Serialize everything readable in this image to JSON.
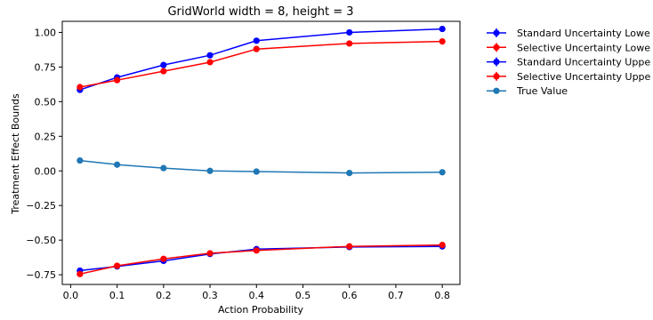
{
  "chart_data": {
    "type": "line",
    "title": "GridWorld width = 8, height = 3",
    "xlabel": "Action Probability",
    "ylabel": "Treatment Effect Bounds",
    "xlim": [
      -0.018,
      0.838
    ],
    "ylim": [
      -0.82,
      1.08
    ],
    "xticks": [
      0.0,
      0.1,
      0.2,
      0.3,
      0.4,
      0.5,
      0.6,
      0.7,
      0.8
    ],
    "xtick_labels": [
      "0.0",
      "0.1",
      "0.2",
      "0.3",
      "0.4",
      "0.5",
      "0.6",
      "0.7",
      "0.8"
    ],
    "yticks": [
      -0.75,
      -0.5,
      -0.25,
      0.0,
      0.25,
      0.5,
      0.75,
      1.0
    ],
    "ytick_labels": [
      "−0.75",
      "−0.50",
      "−0.25",
      "0.00",
      "0.25",
      "0.50",
      "0.75",
      "1.00"
    ],
    "x": [
      0.02,
      0.1,
      0.2,
      0.3,
      0.4,
      0.6,
      0.8
    ],
    "grid": false,
    "legend_position": "outside-top-right",
    "series": [
      {
        "name": "Standard Uncertainty Lower Bound",
        "legend_label": "Standard Uncertainty Lowe",
        "color": "#0000ff",
        "marker": "circle-errorbar",
        "values": [
          -0.72,
          -0.69,
          -0.65,
          -0.6,
          -0.565,
          -0.55,
          -0.545
        ]
      },
      {
        "name": "Selective Uncertainty Lower Bound",
        "legend_label": "Selective Uncertainty Lowe",
        "color": "#ff0000",
        "marker": "circle-errorbar",
        "values": [
          -0.745,
          -0.685,
          -0.635,
          -0.595,
          -0.575,
          -0.545,
          -0.535
        ]
      },
      {
        "name": "Standard Uncertainty Upper Bound",
        "legend_label": "Standard Uncertainty Uppe",
        "color": "#0000ff",
        "marker": "circle-errorbar",
        "values": [
          0.585,
          0.675,
          0.765,
          0.835,
          0.94,
          1.0,
          1.025
        ]
      },
      {
        "name": "Selective Uncertainty Upper Bound",
        "legend_label": "Selective Uncertainty Uppe",
        "color": "#ff0000",
        "marker": "circle-errorbar",
        "values": [
          0.605,
          0.655,
          0.72,
          0.785,
          0.88,
          0.92,
          0.935
        ]
      },
      {
        "name": "True Value",
        "legend_label": "True Value",
        "color": "#1f77b4",
        "marker": "circle",
        "values": [
          0.075,
          0.045,
          0.02,
          0.0,
          -0.005,
          -0.015,
          -0.01
        ]
      }
    ]
  }
}
